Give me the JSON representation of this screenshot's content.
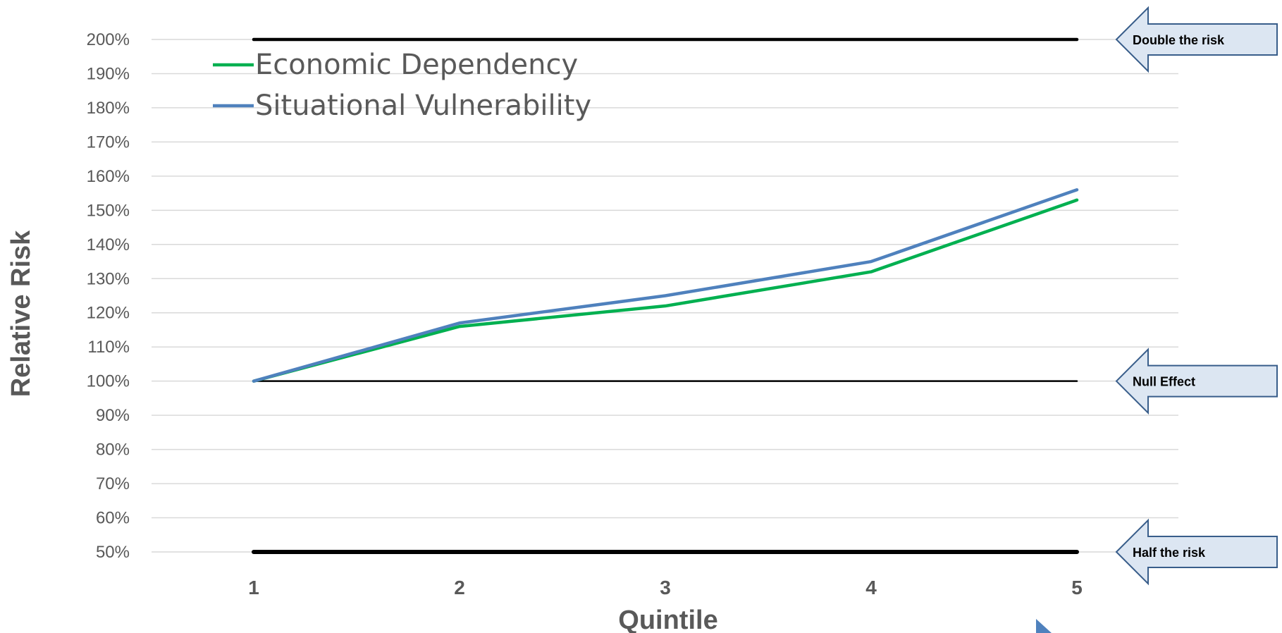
{
  "chart_data": {
    "type": "line",
    "x": [
      1,
      2,
      3,
      4,
      5
    ],
    "xlabel": "Quintile",
    "ylabel": "Relative Risk",
    "ylim": [
      0.5,
      2.0
    ],
    "y_ticks": [
      "50%",
      "60%",
      "70%",
      "80%",
      "90%",
      "100%",
      "110%",
      "120%",
      "130%",
      "140%",
      "150%",
      "160%",
      "170%",
      "180%",
      "190%",
      "200%"
    ],
    "x_ticks": [
      "1",
      "2",
      "3",
      "4",
      "5"
    ],
    "grid": true,
    "legend_position": "top-left",
    "series": [
      {
        "name": "Economic Dependency",
        "color": "#00B050",
        "values": [
          1.0,
          1.16,
          1.22,
          1.32,
          1.53
        ]
      },
      {
        "name": "Situational Vulnerability",
        "color": "#4F81BD",
        "values": [
          1.0,
          1.17,
          1.25,
          1.35,
          1.56
        ]
      }
    ],
    "reference_lines": [
      {
        "value": 2.0,
        "label": "Double the risk"
      },
      {
        "value": 1.0,
        "label": "Null Effect"
      },
      {
        "value": 0.5,
        "label": "Half the risk"
      }
    ]
  }
}
